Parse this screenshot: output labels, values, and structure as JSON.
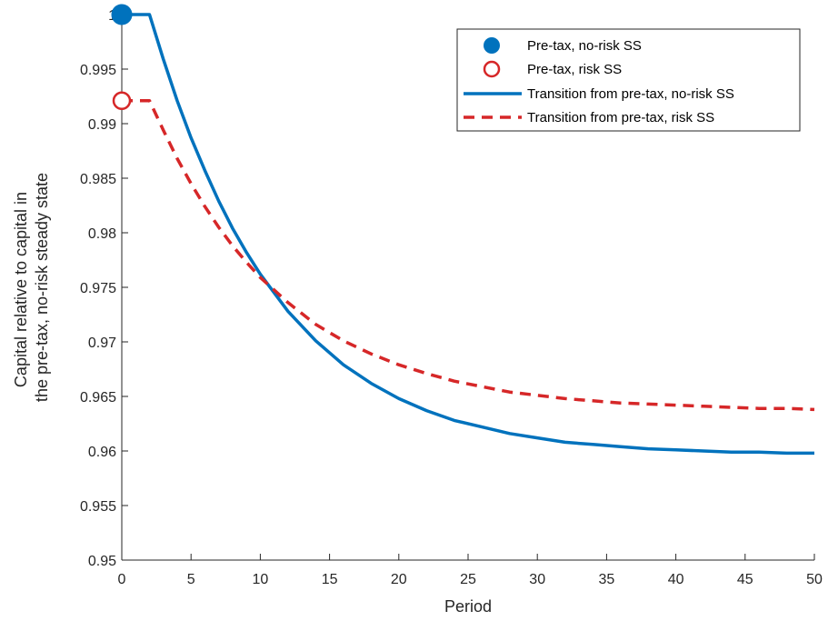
{
  "chart_data": {
    "type": "line",
    "xlabel": "Period",
    "ylabel_lines": [
      "Capital relative to capital in",
      "the pre-tax, no-risk steady state"
    ],
    "xlim": [
      0,
      50
    ],
    "ylim": [
      0.95,
      1.0
    ],
    "xticks": [
      0,
      5,
      10,
      15,
      20,
      25,
      30,
      35,
      40,
      45,
      50
    ],
    "yticks": [
      0.95,
      0.955,
      0.96,
      0.965,
      0.97,
      0.975,
      0.98,
      0.985,
      0.99,
      0.995,
      1
    ],
    "grid": false,
    "legend_position": "top-right",
    "series": [
      {
        "name": "Pre-tax, no-risk SS",
        "kind": "marker",
        "marker": "filled-circle",
        "color": "#0072BD",
        "x": [
          0
        ],
        "y": [
          1.0
        ]
      },
      {
        "name": "Pre-tax, risk SS",
        "kind": "marker",
        "marker": "open-circle",
        "color": "#D62728",
        "x": [
          0
        ],
        "y": [
          0.9921
        ]
      },
      {
        "name": "Transition from pre-tax, no-risk SS",
        "kind": "line",
        "style": "solid",
        "color": "#0072BD",
        "x": [
          0,
          1,
          2,
          3,
          4,
          5,
          6,
          7,
          8,
          9,
          10,
          12,
          14,
          16,
          18,
          20,
          22,
          24,
          26,
          28,
          30,
          32,
          34,
          36,
          38,
          40,
          42,
          44,
          46,
          48,
          50
        ],
        "y": [
          1.0,
          1.0,
          1.0,
          0.9959,
          0.9921,
          0.9887,
          0.9857,
          0.9829,
          0.9804,
          0.9782,
          0.9762,
          0.9728,
          0.9701,
          0.9679,
          0.9662,
          0.9648,
          0.9637,
          0.9628,
          0.9622,
          0.9616,
          0.9612,
          0.9608,
          0.9606,
          0.9604,
          0.9602,
          0.9601,
          0.96,
          0.9599,
          0.9599,
          0.9598,
          0.9598
        ]
      },
      {
        "name": "Transition from pre-tax, risk SS",
        "kind": "line",
        "style": "dashed",
        "color": "#D62728",
        "x": [
          0,
          1,
          2,
          3,
          4,
          5,
          6,
          7,
          8,
          9,
          10,
          12,
          14,
          16,
          18,
          20,
          22,
          24,
          26,
          28,
          30,
          32,
          34,
          36,
          38,
          40,
          42,
          44,
          46,
          48,
          50
        ],
        "y": [
          0.9921,
          0.9921,
          0.9921,
          0.9894,
          0.9868,
          0.9845,
          0.9824,
          0.9805,
          0.9788,
          0.9773,
          0.9759,
          0.9736,
          0.9716,
          0.9701,
          0.9689,
          0.9679,
          0.9671,
          0.9664,
          0.9659,
          0.9654,
          0.9651,
          0.9648,
          0.9646,
          0.9644,
          0.9643,
          0.9642,
          0.9641,
          0.964,
          0.9639,
          0.9639,
          0.9638
        ]
      }
    ]
  },
  "colors": {
    "axis": "#262626",
    "legend_border": "#262626",
    "background": "#ffffff"
  }
}
